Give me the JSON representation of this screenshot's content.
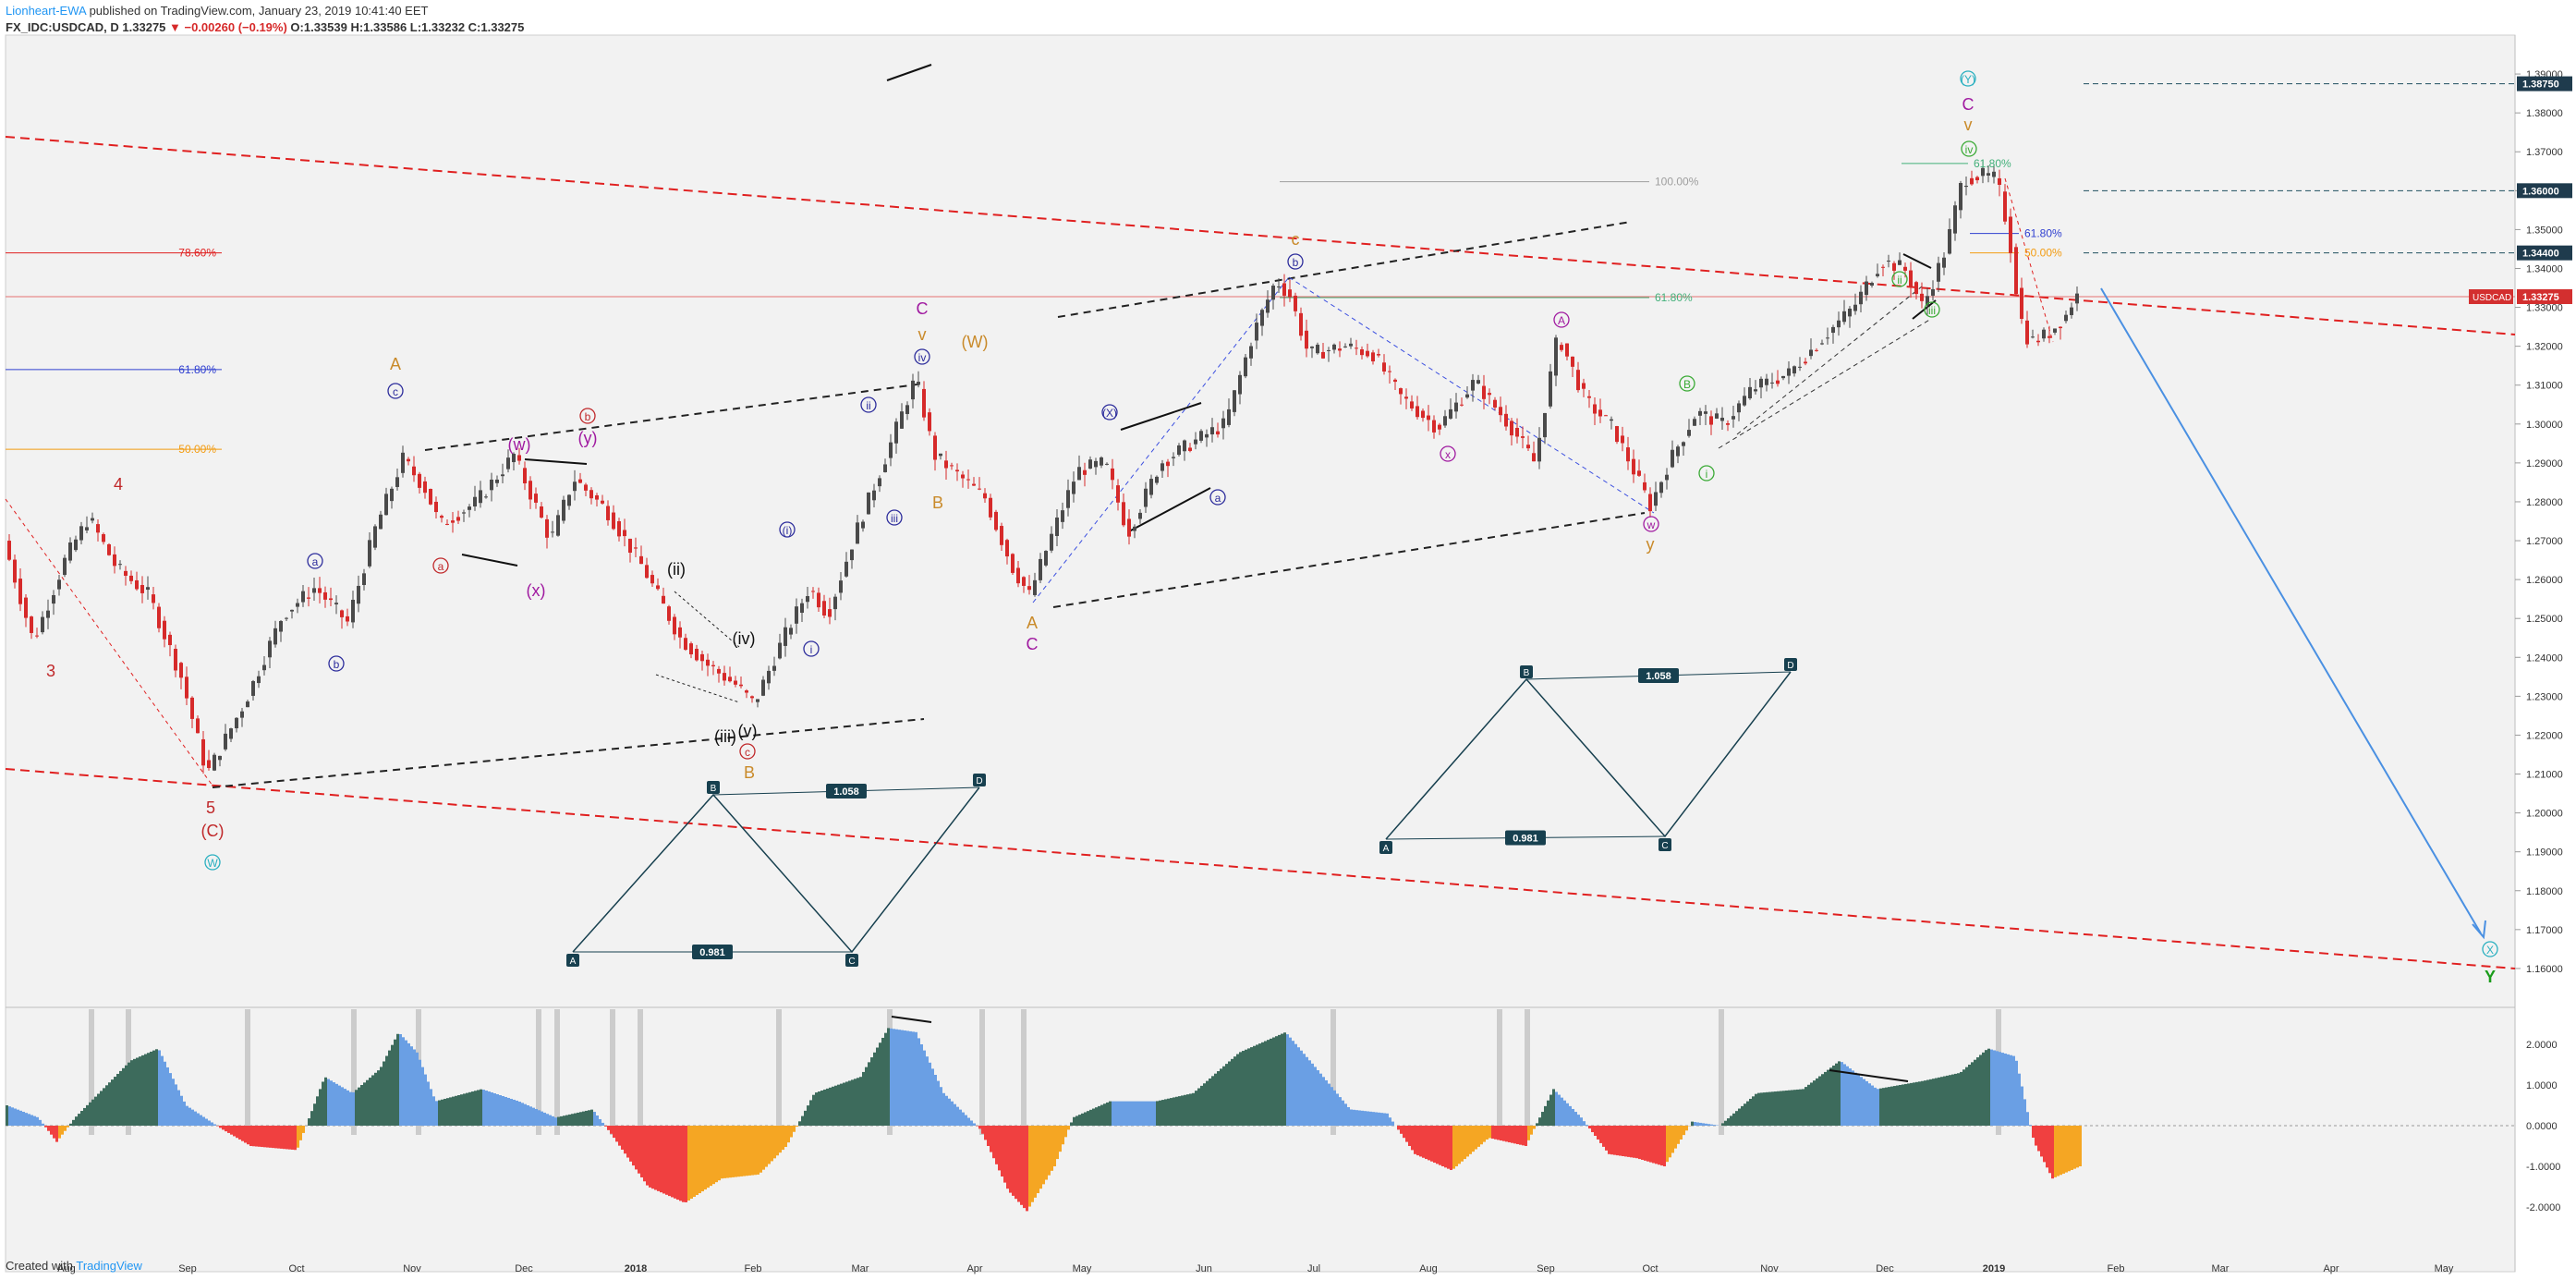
{
  "header": {
    "author": "Lionheart-EWA",
    "published": " published on TradingView.com, January 23, 2019 10:41:40 EET",
    "symbol": "FX_IDC:USDCAD, D",
    "last": " 1.33275 ",
    "change": "▼ −0.00260 (−0.19%)",
    "ohlc": " O:1.33539 H:1.33586 L:1.33232 C:1.33275"
  },
  "footer": {
    "created_with": "Created with ",
    "brand": "TradingView"
  },
  "colors": {
    "up_candle": "#4a4a4a",
    "down_candle": "#d62a2a",
    "trend_red": "#e02020",
    "fib_blue": "#2f3fd0",
    "fib_orange": "#f39c12",
    "projection_blue": "#4a90e2",
    "osc_dark": "#3d6b5c",
    "osc_blue": "#6a9fe4",
    "osc_red": "#f04040",
    "osc_orange": "#f5a623",
    "wave_blue": "#2d2d9c",
    "wave_red": "#c0282a",
    "wave_purple": "#a01aa0",
    "wave_green": "#3aaa35",
    "wave_orange": "#c98a2a",
    "wave_teal": "#2ab0c0"
  },
  "chart_data": {
    "type": "candlestick",
    "symbol": "USDCAD",
    "current_price_label": "USDCAD",
    "current_price": "1.33275",
    "price_labels": [
      "1.38750",
      "1.36000",
      "1.34400"
    ],
    "ylim": [
      1.15,
      1.4
    ],
    "yticks": [
      "1.39000",
      "1.38000",
      "1.37000",
      "1.36000",
      "1.35000",
      "1.34000",
      "1.33000",
      "1.32000",
      "1.31000",
      "1.30000",
      "1.29000",
      "1.28000",
      "1.27000",
      "1.26000",
      "1.25000",
      "1.24000",
      "1.23000",
      "1.22000",
      "1.21000",
      "1.20000",
      "1.19000",
      "1.18000",
      "1.17000",
      "1.16000"
    ],
    "xticks": [
      "Aug",
      "Sep",
      "Oct",
      "Nov",
      "Dec",
      "2018",
      "Feb",
      "Mar",
      "Apr",
      "May",
      "Jun",
      "Jul",
      "Aug",
      "Sep",
      "Oct",
      "Nov",
      "Dec",
      "2019",
      "Feb",
      "Mar",
      "Apr",
      "May"
    ],
    "fib_levels": [
      {
        "label": "78.60%",
        "price": 1.344
      },
      {
        "label": "61.80%",
        "price": 1.314
      },
      {
        "label": "50.00%",
        "price": 1.2935
      },
      {
        "label": "100.00%",
        "price": 1.3623
      },
      {
        "label": "61.80%",
        "price": 1.3325
      },
      {
        "label": "61.80%",
        "price": 1.367
      },
      {
        "label": "61.80%",
        "price": 1.349
      },
      {
        "label": "50.00%",
        "price": 1.344
      }
    ],
    "wave_labels": [
      "3",
      "4",
      "5",
      "(C)",
      "W",
      "a",
      "b",
      "c",
      "A",
      "(w)",
      "(x)",
      "(y)",
      "a",
      "b",
      "(i)",
      "(ii)",
      "(iii)",
      "(iv)",
      "(v)",
      "c",
      "B",
      "i",
      "ii",
      "iii",
      "iv",
      "v",
      "C",
      "(W)",
      "B",
      "A",
      "C",
      "(X)",
      "a",
      "b",
      "c",
      "A",
      "x",
      "w",
      "y",
      "B",
      "i",
      "ii",
      "iii",
      "iv",
      "v",
      "C",
      "(Y)",
      "X",
      "Y",
      "X"
    ],
    "harmonic_ratios": [
      "1.058",
      "0.981",
      "1.058",
      "0.981"
    ],
    "harmonic_points": [
      "A",
      "B",
      "C",
      "D"
    ],
    "oscillator": {
      "yticks": [
        "2.0000",
        "1.0000",
        "0.0000",
        "-1.0000",
        "-2.0000"
      ],
      "ylim": [
        -2.2,
        2.6
      ]
    }
  }
}
